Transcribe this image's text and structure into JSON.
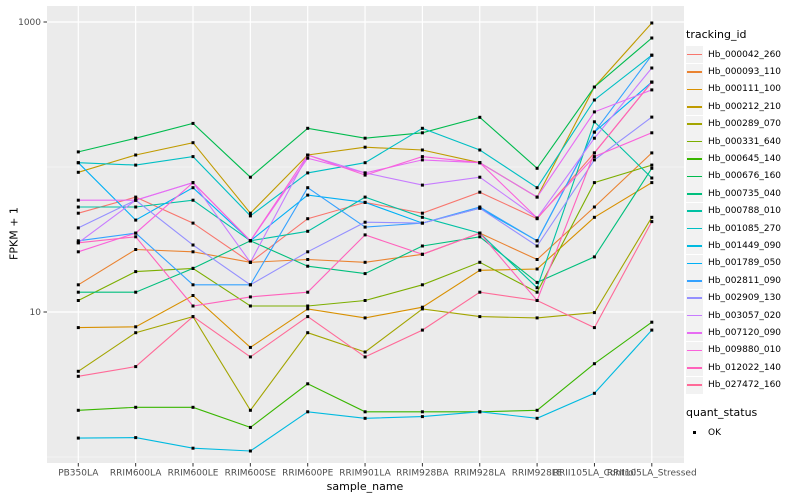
{
  "chart_data": {
    "type": "line",
    "title": "",
    "xlabel": "sample_name",
    "ylabel": "FPKM + 1",
    "y_scale": "log10",
    "y_tick_labels": [
      "1000",
      "10"
    ],
    "y_tick_values": [
      1000,
      10
    ],
    "y_minor_values": [
      100,
      1
    ],
    "ylim": [
      1,
      1290
    ],
    "grid": "on",
    "legend_position": "right",
    "point_marker": "black-square",
    "categories": [
      "PB350LA",
      "RRIM600LA",
      "RRIM600LE",
      "RRIM600SE",
      "RRIM600PE",
      "RRIM901LA",
      "RRIM928BA",
      "RRIM928LA",
      "RRIM928LE",
      "RRII105LA_Control",
      "RRII105LA_Stressed"
    ],
    "series": [
      {
        "name": "Hb_000042_260",
        "color": "#F8766D",
        "values": [
          48,
          62,
          41,
          22,
          44,
          57,
          48,
          67,
          44,
          125,
          385
        ]
      },
      {
        "name": "Hb_000093_110",
        "color": "#EA8331",
        "values": [
          15.4,
          27,
          26,
          22,
          23,
          22,
          25,
          35,
          23,
          53,
          125
        ]
      },
      {
        "name": "Hb_000111_100",
        "color": "#D89000",
        "values": [
          7.8,
          7.9,
          13,
          5.7,
          10.5,
          9.1,
          10.8,
          19.4,
          19.8,
          45,
          78
        ]
      },
      {
        "name": "Hb_000212_210",
        "color": "#C09B00",
        "values": [
          92,
          121,
          147,
          48,
          121,
          137,
          131,
          107,
          62,
          356,
          985
        ]
      },
      {
        "name": "Hb_000289_070",
        "color": "#A3A500",
        "values": [
          3.9,
          7.2,
          9.3,
          2.1,
          7.2,
          5.3,
          10.5,
          9.3,
          9.1,
          9.9,
          45
        ]
      },
      {
        "name": "Hb_000331_640",
        "color": "#7CAE00",
        "values": [
          12,
          19,
          20,
          11,
          11,
          12,
          15.4,
          22,
          13.7,
          78,
          103
        ]
      },
      {
        "name": "Hb_000645_140",
        "color": "#39B600",
        "values": [
          2.1,
          2.2,
          2.2,
          1.6,
          3.2,
          2.05,
          2.05,
          2.05,
          2.1,
          4.4,
          8.5
        ]
      },
      {
        "name": "Hb_000676_160",
        "color": "#00BB4E",
        "values": [
          127,
          158,
          200,
          85,
          185,
          158,
          172,
          220,
          98,
          356,
          776
        ]
      },
      {
        "name": "Hb_000735_040",
        "color": "#00BF7D",
        "values": [
          13.7,
          13.7,
          20,
          31,
          20.7,
          18.4,
          28.5,
          33,
          16,
          24,
          98
        ]
      },
      {
        "name": "Hb_000788_010",
        "color": "#00C1A3",
        "values": [
          53,
          53,
          59,
          31,
          36,
          62,
          45,
          35,
          14.7,
          205,
          84
        ]
      },
      {
        "name": "Hb_001085_270",
        "color": "#00BFC4",
        "values": [
          107,
          103,
          118,
          46,
          91,
          107,
          185,
          131,
          72,
          290,
          590
        ]
      },
      {
        "name": "Hb_001449_090",
        "color": "#00BAE0",
        "values": [
          1.35,
          1.36,
          1.15,
          1.1,
          2.05,
          1.85,
          1.9,
          2.05,
          1.85,
          2.75,
          7.5
        ]
      },
      {
        "name": "Hb_001789_050",
        "color": "#00B0F6",
        "values": [
          107,
          43,
          72,
          31,
          64,
          57,
          41,
          52,
          31,
          174,
          385
        ]
      },
      {
        "name": "Hb_002811_090",
        "color": "#35A2FF",
        "values": [
          31,
          35,
          15.4,
          15.4,
          72,
          38.5,
          41,
          53,
          31,
          174,
          590
        ]
      },
      {
        "name": "Hb_002909_130",
        "color": "#9590FF",
        "values": [
          38,
          59,
          29,
          15.4,
          26,
          41.6,
          41,
          52,
          28.5,
          112,
          221
        ]
      },
      {
        "name": "Hb_003057_020",
        "color": "#C77CFF",
        "values": [
          30,
          59,
          78,
          22,
          121,
          91,
          75,
          85,
          44.5,
          158,
          482
        ]
      },
      {
        "name": "Hb_007120_090",
        "color": "#E76BF3",
        "values": [
          59,
          59,
          78,
          31,
          115,
          91,
          112,
          107,
          62,
          240,
          340
        ]
      },
      {
        "name": "Hb_009880_010",
        "color": "#FA62DB",
        "values": [
          26,
          35,
          78,
          31,
          121,
          88,
          118,
          107,
          44.5,
          118,
          172
        ]
      },
      {
        "name": "Hb_012022_140",
        "color": "#FF62BC",
        "values": [
          30,
          33,
          11,
          12.7,
          13.7,
          34,
          25,
          35,
          12,
          125,
          385
        ]
      },
      {
        "name": "Hb_027472_160",
        "color": "#FF6A98",
        "values": [
          3.6,
          4.2,
          9.3,
          4.9,
          9.3,
          4.9,
          7.5,
          13.7,
          12,
          7.8,
          42
        ]
      }
    ]
  },
  "legend": {
    "tracking_title": "tracking_id",
    "quant_title": "quant_status",
    "quant_items": [
      "OK"
    ]
  },
  "theme": {
    "panel_bg": "#EBEBEB",
    "grid_major": "#FFFFFF",
    "grid_minor": "rgba(255,255,255,0.55)",
    "tick_color": "#333333",
    "tick_label_color": "#4D4D4D",
    "key_bg": "#F2F2F2",
    "point_color": "#000000"
  }
}
